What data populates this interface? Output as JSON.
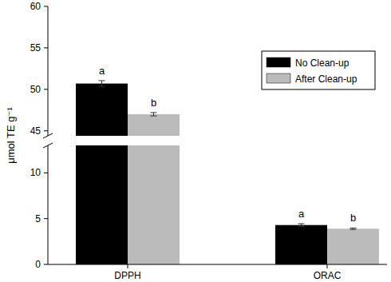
{
  "chart_data": {
    "type": "bar",
    "y_label": "μmol TE g⁻¹",
    "categories": [
      "DPPH",
      "ORAC"
    ],
    "series": [
      {
        "name": "No Clean-up",
        "color": "#000000",
        "values": [
          50.7,
          4.3
        ],
        "errors": [
          0.35,
          0.15
        ],
        "letters": [
          "a",
          "a"
        ]
      },
      {
        "name": "After Clean-up",
        "color": "#bbbbbb",
        "values": [
          47.0,
          3.9
        ],
        "errors": [
          0.2,
          0.08
        ],
        "letters": [
          "b",
          "b"
        ]
      }
    ],
    "ylim": [
      0,
      60
    ],
    "y_break": [
      13,
      44.4
    ],
    "yticks": [
      0,
      5,
      10,
      45,
      50,
      55,
      60
    ],
    "legend": "upper right"
  }
}
